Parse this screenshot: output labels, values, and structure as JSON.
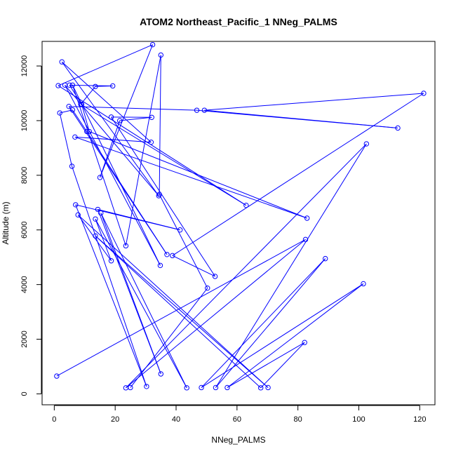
{
  "chart_data": {
    "type": "line",
    "title": "ATOM2 Northeast_Pacific_1 NNeg_PALMS",
    "xlabel": "NNeg_PALMS",
    "ylabel": "Altitude (m)",
    "xlim": [
      -4,
      125
    ],
    "ylim": [
      -400,
      12900
    ],
    "xticks": [
      0,
      20,
      40,
      60,
      80,
      100,
      120
    ],
    "yticks": [
      0,
      2000,
      4000,
      6000,
      8000,
      10000,
      12000
    ],
    "grid": false,
    "legend": "none",
    "marker": "open-circle",
    "line_color": "#0000ff",
    "points": [
      [
        0.8,
        650
      ],
      [
        82.5,
        5650
      ],
      [
        23.5,
        220
      ],
      [
        102.5,
        9150
      ],
      [
        53.0,
        230
      ],
      [
        89.0,
        4950
      ],
      [
        48.3,
        230
      ],
      [
        101.5,
        4030
      ],
      [
        56.8,
        230
      ],
      [
        82.2,
        1880
      ],
      [
        67.8,
        220
      ],
      [
        13.5,
        5780
      ],
      [
        70.2,
        230
      ],
      [
        7.8,
        6550
      ],
      [
        18.7,
        4870
      ],
      [
        13.5,
        6400
      ],
      [
        43.5,
        220
      ],
      [
        15.3,
        6620
      ],
      [
        35.0,
        730
      ],
      [
        14.3,
        6750
      ],
      [
        41.3,
        6000
      ],
      [
        7.0,
        6920
      ],
      [
        30.3,
        270
      ],
      [
        5.8,
        8330
      ],
      [
        1.8,
        10280
      ],
      [
        6.0,
        10390
      ],
      [
        10.7,
        9600
      ],
      [
        37.0,
        5100
      ],
      [
        4.8,
        10520
      ],
      [
        46.8,
        10380
      ],
      [
        112.8,
        9730
      ],
      [
        49.3,
        10380
      ],
      [
        121.3,
        11000
      ],
      [
        38.8,
        5060
      ],
      [
        52.8,
        4300
      ],
      [
        18.7,
        10130
      ],
      [
        32.0,
        10120
      ],
      [
        21.5,
        10000
      ],
      [
        15.0,
        7920
      ],
      [
        32.3,
        12780
      ],
      [
        1.3,
        11280
      ],
      [
        63.0,
        6900
      ],
      [
        8.7,
        10600
      ],
      [
        13.5,
        11250
      ],
      [
        19.2,
        11270
      ],
      [
        5.0,
        11300
      ],
      [
        9.0,
        10600
      ],
      [
        11.5,
        9600
      ],
      [
        83.0,
        6430
      ],
      [
        6.8,
        9400
      ],
      [
        31.8,
        9210
      ],
      [
        2.5,
        12150
      ],
      [
        34.3,
        7250
      ],
      [
        3.5,
        11300
      ],
      [
        34.8,
        4700
      ],
      [
        6.0,
        11300
      ],
      [
        23.5,
        5420
      ],
      [
        35.0,
        12400
      ],
      [
        34.5,
        7300
      ],
      [
        50.3,
        3870
      ],
      [
        25.0,
        230
      ]
    ]
  }
}
